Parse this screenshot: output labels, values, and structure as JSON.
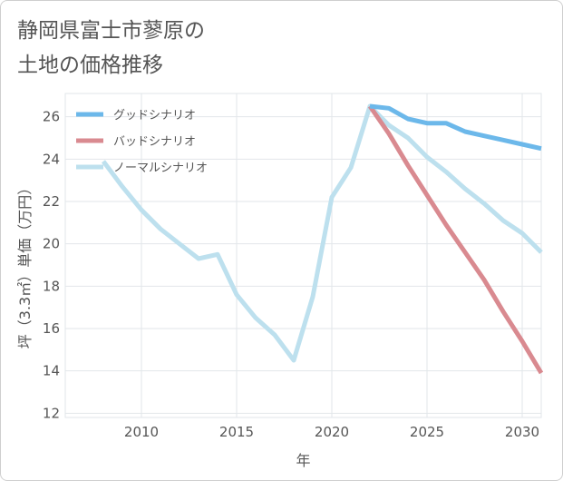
{
  "title_lines": [
    "静岡県富士市蓼原の",
    "土地の価格推移"
  ],
  "chart_data": {
    "type": "line",
    "xlabel": "年",
    "ylabel": "坪（3.3㎡）単価（万円）",
    "xlim": [
      2006,
      2031
    ],
    "ylim": [
      11.8,
      27.1
    ],
    "xticks": [
      2010,
      2015,
      2020,
      2025,
      2030
    ],
    "yticks": [
      12,
      14,
      16,
      18,
      20,
      22,
      24,
      26
    ],
    "grid": true,
    "legend_position": "top-left",
    "series": [
      {
        "name": "グッドシナリオ",
        "color": "#6cb8ea",
        "x": [
          2022,
          2023,
          2024,
          2025,
          2026,
          2027,
          2028,
          2029,
          2030,
          2031
        ],
        "y": [
          26.5,
          26.4,
          25.9,
          25.7,
          25.7,
          25.3,
          25.1,
          24.9,
          24.7,
          24.5
        ]
      },
      {
        "name": "バッドシナリオ",
        "color": "#d98a90",
        "x": [
          2022,
          2023,
          2024,
          2025,
          2026,
          2027,
          2028,
          2029,
          2030,
          2031
        ],
        "y": [
          26.5,
          25.2,
          23.7,
          22.3,
          20.9,
          19.6,
          18.3,
          16.8,
          15.4,
          13.9
        ]
      },
      {
        "name": "ノーマルシナリオ",
        "color": "#bde0ee",
        "x": [
          2008,
          2009,
          2010,
          2011,
          2012,
          2013,
          2014,
          2015,
          2016,
          2017,
          2018,
          2019,
          2020,
          2021,
          2022,
          2023,
          2024,
          2025,
          2026,
          2027,
          2028,
          2029,
          2030,
          2031
        ],
        "y": [
          23.9,
          22.7,
          21.6,
          20.7,
          20.0,
          19.3,
          19.5,
          17.6,
          16.5,
          15.7,
          14.5,
          17.5,
          22.2,
          23.6,
          26.5,
          25.6,
          25.0,
          24.1,
          23.4,
          22.6,
          21.9,
          21.1,
          20.5,
          19.6
        ]
      }
    ]
  }
}
